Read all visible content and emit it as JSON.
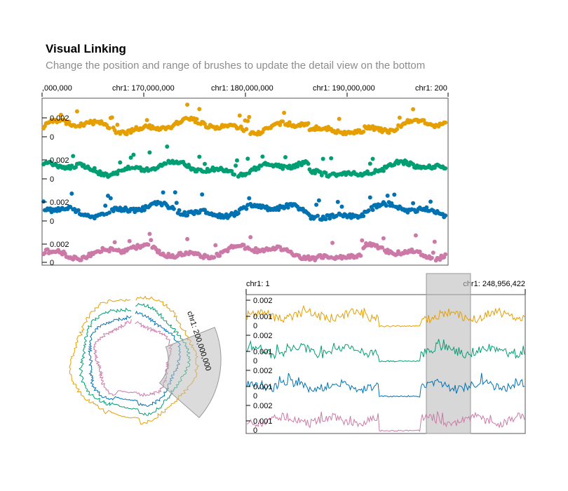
{
  "title": "Visual Linking",
  "subtitle": "Change the position and range of brushes to update the detail view on the bottom",
  "colors": {
    "orange": "#E69F00",
    "green": "#009E73",
    "blue": "#0072B2",
    "pink": "#CC79A7",
    "brush": "#bdbdbd"
  },
  "chart_data": [
    {
      "type": "scatter",
      "view": "detail",
      "x_ticks": [
        ",000,000",
        "chr1: 170,000,000",
        "chr1: 180,000,000",
        "chr1: 190,000,000",
        "chr1: 200"
      ],
      "y_tick_labels": [
        "0.002",
        "0"
      ],
      "series": [
        {
          "color": "#E69F00"
        },
        {
          "color": "#009E73"
        },
        {
          "color": "#0072B2"
        },
        {
          "color": "#CC79A7"
        }
      ]
    },
    {
      "type": "line",
      "view": "circular-overview",
      "brush_label": "chr1: 200,000,000",
      "series": [
        {
          "color": "#E69F00"
        },
        {
          "color": "#009E73"
        },
        {
          "color": "#0072B2"
        },
        {
          "color": "#CC79A7"
        }
      ]
    },
    {
      "type": "line",
      "view": "linear-overview",
      "x_ticks": [
        "chr1: 1",
        "chr1: 248,956,422"
      ],
      "y_tick_labels": [
        "0.002",
        "0.001",
        "0"
      ],
      "brush": [
        0.64,
        0.8
      ],
      "series": [
        {
          "color": "#E69F00"
        },
        {
          "color": "#009E73"
        },
        {
          "color": "#0072B2"
        },
        {
          "color": "#CC79A7"
        }
      ]
    }
  ]
}
